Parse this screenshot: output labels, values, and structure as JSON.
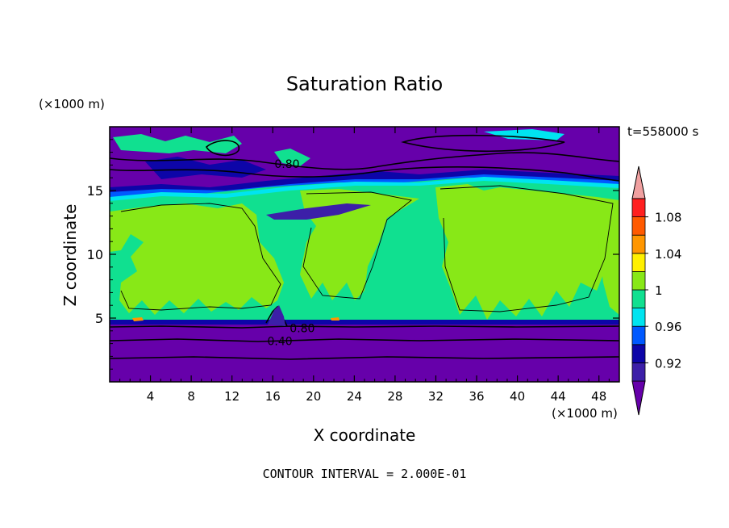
{
  "chart_data": {
    "type": "heatmap",
    "title": "Saturation Ratio",
    "xlabel": "X coordinate",
    "ylabel": "Z coordinate",
    "x_unit": "(×1000 m)",
    "y_unit": "(×1000 m)",
    "time_label": "t=558000 s",
    "footer": "CONTOUR INTERVAL = 2.000E-01",
    "xlim": [
      0,
      50
    ],
    "ylim": [
      0,
      20
    ],
    "x_ticks": [
      4,
      8,
      12,
      16,
      20,
      24,
      28,
      32,
      36,
      40,
      44,
      48
    ],
    "y_ticks": [
      5,
      10,
      15
    ],
    "colorbar": {
      "levels": [
        0.92,
        0.96,
        1,
        1.04,
        1.08
      ],
      "level_labels": [
        "0.92",
        "0.96",
        "1",
        "1.04",
        "1.08"
      ],
      "colors": [
        "#6600aa",
        "#3c1fa8",
        "#0d05a8",
        "#0059ff",
        "#00e4f0",
        "#10e090",
        "#88e817",
        "#fff000",
        "#ff9600",
        "#ff5a00",
        "#ff2020",
        "#f0a0a0"
      ]
    },
    "contour_labels": [
      {
        "text": "0.80",
        "x": 17.4,
        "y": 17.1
      },
      {
        "text": "0.80",
        "x": 18.9,
        "y": 4.2
      },
      {
        "text": "0.40",
        "x": 16.7,
        "y": 3.2
      }
    ],
    "regions": [
      {
        "z_range": [
          0,
          4.8
        ],
        "value_class": "below 0.92 (purple)"
      },
      {
        "z_range": [
          4.8,
          14.5
        ],
        "value_class": "0.96–1.04 (cyan / green)"
      },
      {
        "z_range": [
          14.5,
          20
        ],
        "value_class": "mostly below 0.92 (purple) with cyan patches"
      }
    ]
  }
}
